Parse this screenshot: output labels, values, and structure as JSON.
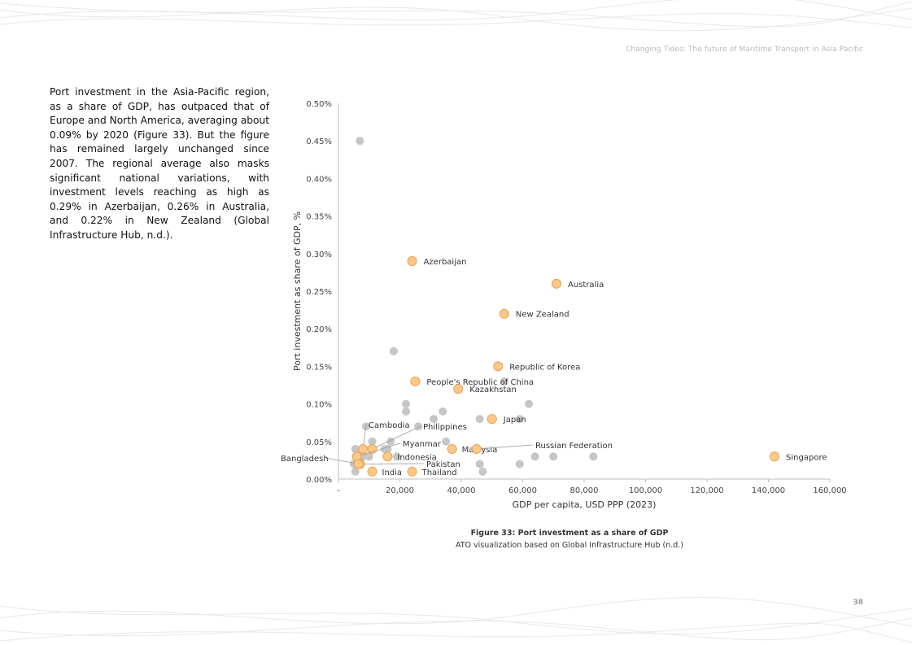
{
  "header": {
    "title": "Changing Tides: The future of Maritime Transport in Asia Pacific"
  },
  "body_text": "Port investment in the Asia-Pacific region, as a share of GDP, has outpaced that of Europe and North America, averaging about 0.09% by 2020 (Figure 33). But the figure has remained largely unchanged since 2007. The regional average also masks significant national variations, with investment levels reaching as high as 0.29% in Azerbaijan, 0.26% in Australia, and 0.22% in New Zealand (Global Infrastructure Hub, n.d.).",
  "caption": {
    "title": "Figure 33: Port investment as a share of GDP",
    "subtitle": "ATO visualization based on Global Infrastructure Hub (n.d.)"
  },
  "page_number": "38",
  "colors": {
    "highlight_fill": "#fbc98a",
    "highlight_stroke": "#f0a04b",
    "gray_point": "#c6c6c6",
    "axis": "#bfbfbf"
  },
  "chart_data": {
    "type": "scatter",
    "xlabel": "GDP per capita, USD PPP (2023)",
    "ylabel": "Port investment as share of GDP, %",
    "xlim": [
      0,
      160000
    ],
    "ylim": [
      0,
      0.5
    ],
    "x_ticks": [
      0,
      20000,
      40000,
      60000,
      80000,
      100000,
      120000,
      140000,
      160000
    ],
    "x_tick_labels": [
      "-",
      "20,000",
      "40,000",
      "60,000",
      "80,000",
      "100,000",
      "120,000",
      "140,000",
      "160,000"
    ],
    "y_ticks": [
      0,
      0.05,
      0.1,
      0.15,
      0.2,
      0.25,
      0.3,
      0.35,
      0.4,
      0.45,
      0.5
    ],
    "y_tick_labels": [
      "0.00%",
      "0.05%",
      "0.10%",
      "0.15%",
      "0.20%",
      "0.25%",
      "0.30%",
      "0.35%",
      "0.40%",
      "0.45%",
      "0.50%"
    ],
    "highlighted": [
      {
        "label": "Azerbaijan",
        "x": 24000,
        "y": 0.29
      },
      {
        "label": "Australia",
        "x": 71000,
        "y": 0.26
      },
      {
        "label": "New Zealand",
        "x": 54000,
        "y": 0.22
      },
      {
        "label": "Republic of Korea",
        "x": 52000,
        "y": 0.15
      },
      {
        "label": "People's Republic of China",
        "x": 25000,
        "y": 0.13
      },
      {
        "label": "Kazakhstan",
        "x": 39000,
        "y": 0.12
      },
      {
        "label": "Japan",
        "x": 50000,
        "y": 0.08
      },
      {
        "label": "Singapore",
        "x": 142000,
        "y": 0.03
      },
      {
        "label": "Malaysia",
        "x": 37000,
        "y": 0.04
      },
      {
        "label": "Russian Federation",
        "x": 45000,
        "y": 0.04
      },
      {
        "label": "Philippines",
        "x": 11000,
        "y": 0.04
      },
      {
        "label": "Cambodia",
        "x": 8000,
        "y": 0.04
      },
      {
        "label": "Myanmar",
        "x": 6000,
        "y": 0.03
      },
      {
        "label": "Indonesia",
        "x": 16000,
        "y": 0.03
      },
      {
        "label": "Bangladesh",
        "x": 7000,
        "y": 0.02
      },
      {
        "label": "Pakistan",
        "x": 6500,
        "y": 0.02
      },
      {
        "label": "India",
        "x": 11000,
        "y": 0.01
      },
      {
        "label": "Thailand",
        "x": 24000,
        "y": 0.01
      }
    ],
    "others": [
      {
        "x": 7000,
        "y": 0.45
      },
      {
        "x": 18000,
        "y": 0.17
      },
      {
        "x": 22000,
        "y": 0.1
      },
      {
        "x": 22000,
        "y": 0.09
      },
      {
        "x": 34000,
        "y": 0.09
      },
      {
        "x": 31000,
        "y": 0.08
      },
      {
        "x": 46000,
        "y": 0.08
      },
      {
        "x": 59000,
        "y": 0.08
      },
      {
        "x": 62000,
        "y": 0.1
      },
      {
        "x": 54000,
        "y": 0.13
      },
      {
        "x": 9000,
        "y": 0.07
      },
      {
        "x": 26000,
        "y": 0.07
      },
      {
        "x": 11000,
        "y": 0.05
      },
      {
        "x": 17000,
        "y": 0.05
      },
      {
        "x": 35000,
        "y": 0.05
      },
      {
        "x": 5500,
        "y": 0.04
      },
      {
        "x": 15000,
        "y": 0.04
      },
      {
        "x": 16000,
        "y": 0.04
      },
      {
        "x": 6000,
        "y": 0.03
      },
      {
        "x": 8000,
        "y": 0.03
      },
      {
        "x": 10000,
        "y": 0.03
      },
      {
        "x": 19000,
        "y": 0.03
      },
      {
        "x": 64000,
        "y": 0.03
      },
      {
        "x": 70000,
        "y": 0.03
      },
      {
        "x": 83000,
        "y": 0.03
      },
      {
        "x": 5000,
        "y": 0.02
      },
      {
        "x": 46000,
        "y": 0.02
      },
      {
        "x": 59000,
        "y": 0.02
      },
      {
        "x": 5500,
        "y": 0.01
      },
      {
        "x": 47000,
        "y": 0.01
      }
    ]
  }
}
